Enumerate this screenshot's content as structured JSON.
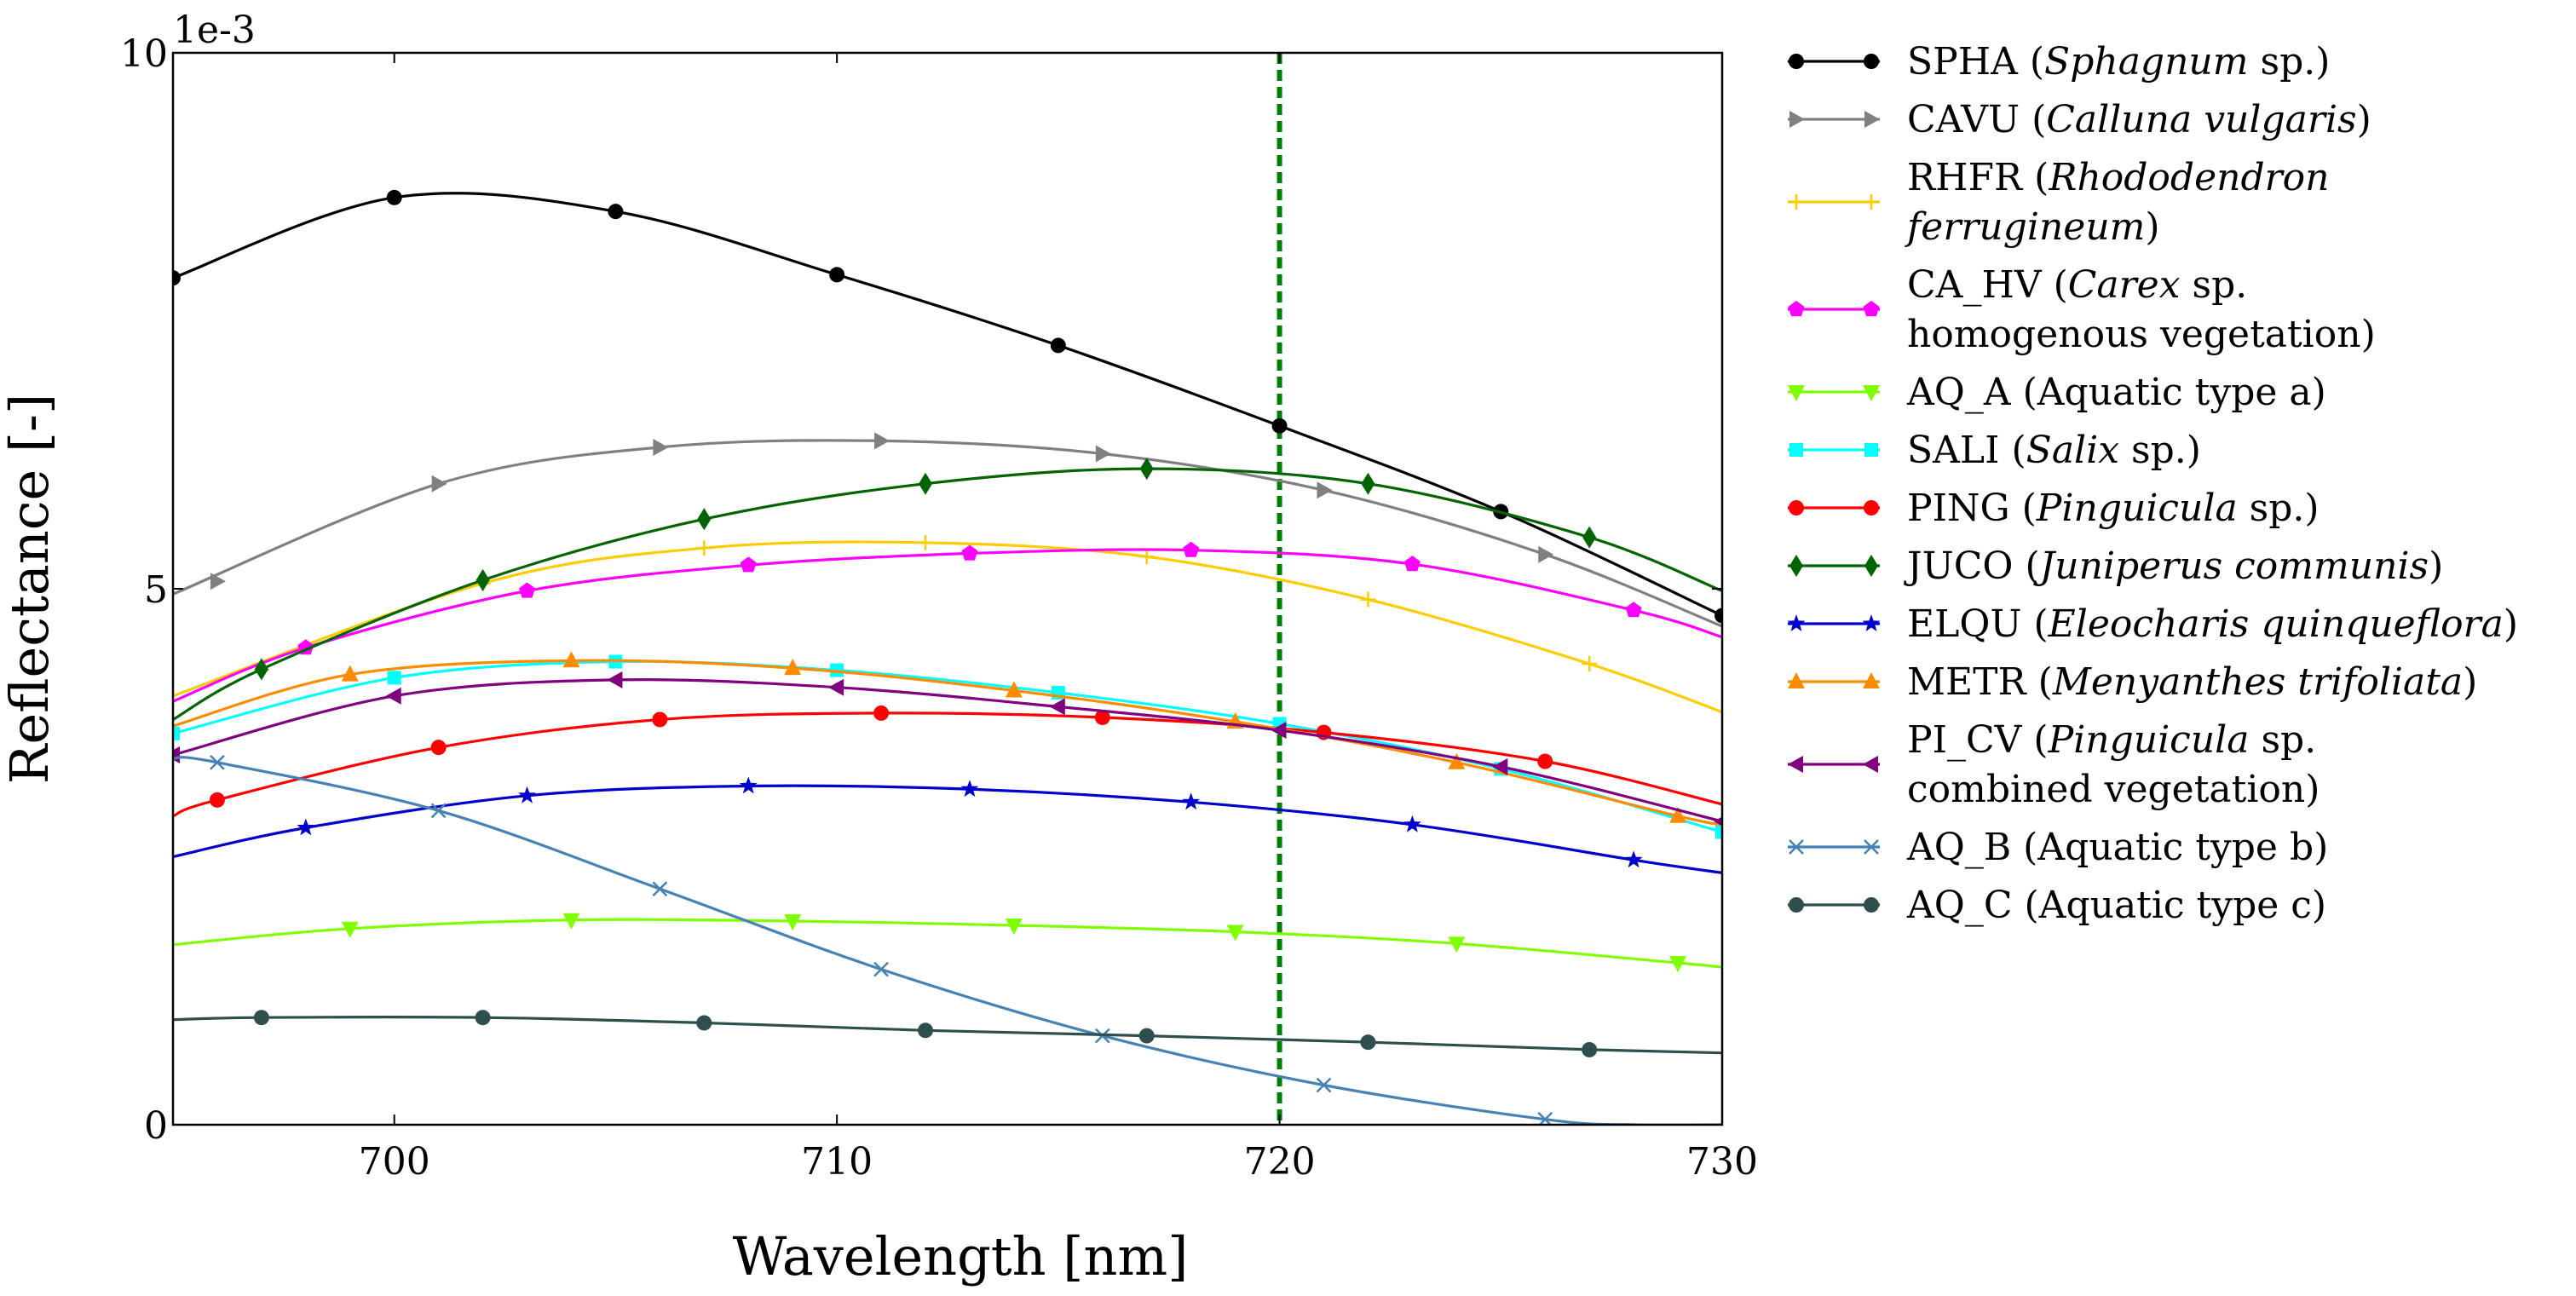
{
  "chart_data": {
    "type": "line",
    "title": "",
    "xlabel": "Wavelength [nm]",
    "ylabel": "Reflectance [-]",
    "xlim": [
      695,
      730
    ],
    "ylim": [
      0,
      10
    ],
    "y_scale_label": "1e-3",
    "x_ticks": [
      700,
      710,
      720,
      730
    ],
    "x_tick_labels": [
      "700",
      "710",
      "720",
      "730"
    ],
    "y_ticks": [
      0,
      5,
      10
    ],
    "y_tick_labels": [
      "0",
      "5",
      "10"
    ],
    "grid": false,
    "legend_position": "outside-right",
    "reference_line": {
      "x": 720,
      "color": "#008000",
      "style": "dashed"
    },
    "series": [
      {
        "name": "SPHA",
        "legend": [
          [
            {
              "t": "SPHA ("
            },
            {
              "t": "Sphagnum",
              "i": true
            },
            {
              "t": " sp.)"
            }
          ]
        ],
        "color": "#000000",
        "marker": "circle",
        "x": [
          695,
          700,
          705,
          710,
          715,
          720,
          725,
          730
        ],
        "y": [
          7.9,
          8.65,
          8.52,
          7.93,
          7.27,
          6.52,
          5.72,
          4.75
        ],
        "marker_x": [
          695,
          700,
          705,
          710,
          715,
          720,
          725,
          730
        ]
      },
      {
        "name": "CAVU",
        "legend": [
          [
            {
              "t": "CAVU ("
            },
            {
              "t": "Calluna vulgaris",
              "i": true
            },
            {
              "t": ")"
            }
          ]
        ],
        "color": "#808080",
        "marker": "triangle-right",
        "x": [
          695,
          701,
          706,
          711,
          716,
          721,
          726,
          730
        ],
        "y": [
          4.95,
          5.98,
          6.32,
          6.38,
          6.26,
          5.92,
          5.32,
          4.65
        ],
        "marker_x": [
          696,
          701,
          706,
          711,
          716,
          721,
          726
        ]
      },
      {
        "name": "RHFR",
        "legend": [
          [
            {
              "t": "RHFR ("
            },
            {
              "t": "Rhododendron",
              "i": true
            }
          ],
          [
            {
              "t": "ferrugineum",
              "i": true
            },
            {
              "t": ")"
            }
          ]
        ],
        "color": "#ffcc00",
        "marker": "plus",
        "x": [
          695,
          702,
          707,
          712,
          717,
          722,
          727,
          730
        ],
        "y": [
          4.0,
          5.05,
          5.38,
          5.43,
          5.3,
          4.9,
          4.3,
          3.85
        ],
        "marker_x": [
          697,
          702,
          707,
          712,
          717,
          722,
          727
        ]
      },
      {
        "name": "CA_HV",
        "legend": [
          [
            {
              "t": "CA_HV ("
            },
            {
              "t": "Carex",
              "i": true
            },
            {
              "t": " sp."
            }
          ],
          [
            {
              "t": "homogenous vegetation)"
            }
          ]
        ],
        "color": "#ff00ff",
        "marker": "pentagon",
        "x": [
          695,
          698,
          703,
          708,
          713,
          718,
          723,
          728,
          730
        ],
        "y": [
          3.95,
          4.45,
          4.98,
          5.22,
          5.33,
          5.36,
          5.23,
          4.8,
          4.55
        ],
        "marker_x": [
          698,
          703,
          708,
          713,
          718,
          723,
          728
        ]
      },
      {
        "name": "AQ_A",
        "legend": [
          [
            {
              "t": "AQ_A (Aquatic type a)"
            }
          ]
        ],
        "color": "#7fff00",
        "marker": "triangle-down",
        "x": [
          695,
          699,
          704,
          709,
          714,
          719,
          724,
          729,
          730
        ],
        "y": [
          1.68,
          1.83,
          1.91,
          1.9,
          1.86,
          1.8,
          1.69,
          1.51,
          1.47
        ],
        "marker_x": [
          699,
          704,
          709,
          714,
          719,
          724,
          729
        ]
      },
      {
        "name": "SALI",
        "legend": [
          [
            {
              "t": "SALI ("
            },
            {
              "t": "Salix",
              "i": true
            },
            {
              "t": " sp.)"
            }
          ]
        ],
        "color": "#00ffff",
        "marker": "square",
        "x": [
          695,
          700,
          705,
          710,
          715,
          720,
          725,
          730
        ],
        "y": [
          3.65,
          4.17,
          4.32,
          4.24,
          4.03,
          3.74,
          3.32,
          2.73
        ],
        "marker_x": [
          695,
          700,
          705,
          710,
          715,
          720,
          725,
          730
        ]
      },
      {
        "name": "PING",
        "legend": [
          [
            {
              "t": "PING ("
            },
            {
              "t": "Pinguicula",
              "i": true
            },
            {
              "t": " sp.)"
            }
          ]
        ],
        "color": "#ff0000",
        "marker": "circle",
        "x": [
          695,
          696,
          701,
          706,
          711,
          716,
          721,
          726,
          730
        ],
        "y": [
          2.88,
          3.03,
          3.52,
          3.78,
          3.84,
          3.8,
          3.66,
          3.39,
          2.99
        ],
        "marker_x": [
          696,
          701,
          706,
          711,
          716,
          721,
          726
        ]
      },
      {
        "name": "JUCO",
        "legend": [
          [
            {
              "t": "JUCO ("
            },
            {
              "t": "Juniperus communis",
              "i": true
            },
            {
              "t": ")"
            }
          ]
        ],
        "color": "#006400",
        "marker": "diamond",
        "x": [
          695,
          697,
          702,
          707,
          712,
          717,
          722,
          727,
          730
        ],
        "y": [
          3.78,
          4.25,
          5.08,
          5.65,
          5.98,
          6.12,
          5.98,
          5.48,
          4.98
        ],
        "marker_x": [
          697,
          702,
          707,
          712,
          717,
          722,
          727
        ]
      },
      {
        "name": "ELQU",
        "legend": [
          [
            {
              "t": "ELQU ("
            },
            {
              "t": "Eleocharis quinqueflora",
              "i": true
            },
            {
              "t": ")"
            }
          ]
        ],
        "color": "#0000cd",
        "marker": "star",
        "x": [
          695,
          698,
          703,
          708,
          713,
          718,
          723,
          728,
          730
        ],
        "y": [
          2.5,
          2.77,
          3.07,
          3.16,
          3.13,
          3.01,
          2.8,
          2.47,
          2.35
        ],
        "marker_x": [
          698,
          703,
          708,
          713,
          718,
          723,
          728
        ]
      },
      {
        "name": "METR",
        "legend": [
          [
            {
              "t": "METR ("
            },
            {
              "t": "Menyanthes trifoliata",
              "i": true
            },
            {
              "t": ")"
            }
          ]
        ],
        "color": "#ff8c00",
        "marker": "triangle-up",
        "x": [
          695,
          699,
          704,
          709,
          714,
          719,
          724,
          729,
          730
        ],
        "y": [
          3.72,
          4.2,
          4.33,
          4.26,
          4.05,
          3.76,
          3.38,
          2.88,
          2.8
        ],
        "marker_x": [
          699,
          704,
          709,
          714,
          719,
          724,
          729
        ]
      },
      {
        "name": "PI_CV",
        "legend": [
          [
            {
              "t": "PI_CV ("
            },
            {
              "t": "Pinguicula",
              "i": true
            },
            {
              "t": " sp."
            }
          ],
          [
            {
              "t": "combined vegetation)"
            }
          ]
        ],
        "color": "#800080",
        "marker": "triangle-left",
        "x": [
          695,
          700,
          705,
          710,
          715,
          720,
          725,
          730
        ],
        "y": [
          3.45,
          4.0,
          4.15,
          4.08,
          3.9,
          3.68,
          3.34,
          2.83
        ],
        "marker_x": [
          695,
          700,
          705,
          710,
          715,
          720,
          725,
          730
        ]
      },
      {
        "name": "AQ_B",
        "legend": [
          [
            {
              "t": "AQ_B (Aquatic type b)"
            }
          ]
        ],
        "color": "#4682b4",
        "marker": "x",
        "x": [
          695,
          696,
          701,
          706,
          711,
          716,
          721,
          726,
          728,
          730
        ],
        "y": [
          3.42,
          3.38,
          2.93,
          2.2,
          1.45,
          0.83,
          0.37,
          0.05,
          0.0,
          0.0
        ],
        "marker_x": [
          696,
          701,
          706,
          711,
          716,
          721,
          726
        ]
      },
      {
        "name": "AQ_C",
        "legend": [
          [
            {
              "t": "AQ_C (Aquatic type c)"
            }
          ]
        ],
        "color": "#2f4f4f",
        "marker": "circle",
        "x": [
          695,
          697,
          702,
          707,
          712,
          717,
          722,
          727,
          730
        ],
        "y": [
          0.98,
          1.0,
          1.0,
          0.95,
          0.88,
          0.83,
          0.77,
          0.7,
          0.67
        ],
        "marker_x": [
          697,
          702,
          707,
          712,
          717,
          722,
          727
        ]
      }
    ]
  }
}
